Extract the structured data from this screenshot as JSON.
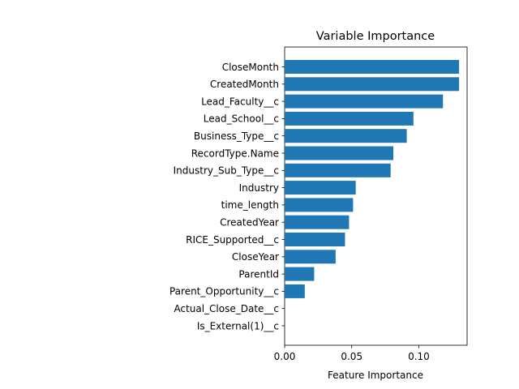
{
  "chart_data": {
    "type": "bar",
    "orientation": "horizontal",
    "title": "Variable Importance",
    "xlabel": "Feature Importance",
    "ylabel": "",
    "xlim": [
      0,
      0.136
    ],
    "xticks": [
      0,
      0.05,
      0.1
    ],
    "xtick_labels": [
      "0.00",
      "0.05",
      "0.10"
    ],
    "grid": false,
    "bar_color": "#1f77b4",
    "categories": [
      "CloseMonth",
      "CreatedMonth",
      "Lead_Faculty__c",
      "Lead_School__c",
      "Business_Type__c",
      "RecordType.Name",
      "Industry_Sub_Type__c",
      "Industry",
      "time_length",
      "CreatedYear",
      "RICE_Supported__c",
      "CloseYear",
      "ParentId",
      "Parent_Opportunity__c",
      "Actual_Close_Date__c",
      "Is_External(1)__c"
    ],
    "values": [
      0.13,
      0.13,
      0.118,
      0.096,
      0.091,
      0.081,
      0.079,
      0.053,
      0.051,
      0.048,
      0.045,
      0.038,
      0.022,
      0.015,
      0.0,
      0.0
    ]
  }
}
